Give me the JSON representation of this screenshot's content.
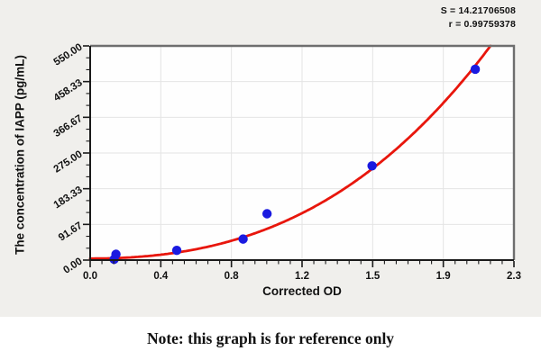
{
  "annotation": {
    "s_label": "S = 14.21706508",
    "r_label": "r = 0.99759378"
  },
  "note": "Note: this graph is for reference only",
  "colors": {
    "figure_background": "#f0efec",
    "plot_background": "#fefefe",
    "curve_red": "#e8160c",
    "point_blue": "#1a1ae0",
    "grid": "#e4e4e4",
    "axis": "#1a1a1a",
    "frame_shadow": "#6e6e6e",
    "text": "#111111"
  },
  "chart_data": {
    "type": "scatter",
    "title": "",
    "xlabel": "Corrected OD",
    "ylabel": "The concentration of IAPP (pg/mL)",
    "xlim": [
      0,
      2.3
    ],
    "ylim": [
      0,
      550
    ],
    "x_tick_labels": [
      "0.0",
      "0.4",
      "0.8",
      "1.2",
      "1.5",
      "1.9",
      "2.3"
    ],
    "y_tick_labels": [
      "0.00",
      "91.67",
      "183.33",
      "275.00",
      "366.67",
      "458.33",
      "550.00"
    ],
    "x_minor_per_major": 6,
    "y_minor_per_major": 3,
    "grid": true,
    "legend": "none",
    "points": [
      {
        "x": 0.13,
        "y": 2
      },
      {
        "x": 0.14,
        "y": 15
      },
      {
        "x": 0.47,
        "y": 25
      },
      {
        "x": 0.83,
        "y": 54
      },
      {
        "x": 0.96,
        "y": 119
      },
      {
        "x": 1.53,
        "y": 242
      },
      {
        "x": 2.09,
        "y": 490
      }
    ],
    "fit_curve": {
      "type": "cubic",
      "coefficients": {
        "a0": 4,
        "a1": 0,
        "a2": 57,
        "a3": 27
      },
      "clip_at_ymax": true
    },
    "statistics": {
      "S": "14.21706508",
      "r": "0.99759378"
    }
  }
}
